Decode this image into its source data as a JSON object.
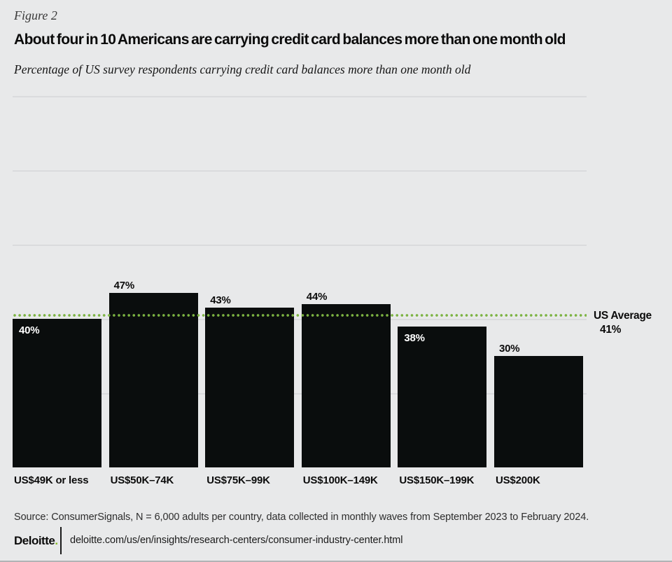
{
  "figure_label": "Figure 2",
  "title": "About four in 10 Americans are carrying credit card balances more than one month old",
  "subtitle": "Percentage of US survey respondents carrying credit card balances more than one month old",
  "chart_data": {
    "type": "bar",
    "title": "About four in 10 Americans are carrying credit card balances more than one month old",
    "subtitle": "Percentage of US survey respondents carrying credit card balances more than one month old",
    "categories": [
      "US$49K or less",
      "US$50K–74K",
      "US$75K–99K",
      "US$100K–149K",
      "US$150K–199K",
      "US$200K"
    ],
    "values": [
      40,
      47,
      43,
      44,
      38,
      30
    ],
    "value_labels": [
      "40%",
      "47%",
      "43%",
      "44%",
      "38%",
      "30%"
    ],
    "label_placement": [
      "inside",
      "above",
      "above",
      "above",
      "inside",
      "above"
    ],
    "reference_line": {
      "label": "US Average",
      "value": 41,
      "value_label": "41%",
      "style": "dotted",
      "color": "#7cb342"
    },
    "xlabel": "",
    "ylabel": "",
    "ylim": [
      0,
      100
    ],
    "gridlines_percent": [
      20,
      40,
      60,
      80,
      100
    ],
    "grid": true,
    "legend": false,
    "bar_color": "#0a0d0d"
  },
  "footer": {
    "source": "Source: ConsumerSignals, N = 6,000 adults per country, data collected in monthly waves from September 2023 to February 2024.",
    "brand": "Deloitte",
    "brand_dot": ".",
    "url": "deloitte.com/us/en/insights/research-centers/consumer-industry-center.html"
  },
  "colors": {
    "background": "#e8e9ea",
    "bar": "#0a0d0d",
    "gridline": "#dadbdd",
    "accent_green": "#86bc25",
    "dotted_line_green": "#7cb342",
    "value_label_inside": "#ffffff",
    "value_label_above": "#0b0b0b"
  }
}
